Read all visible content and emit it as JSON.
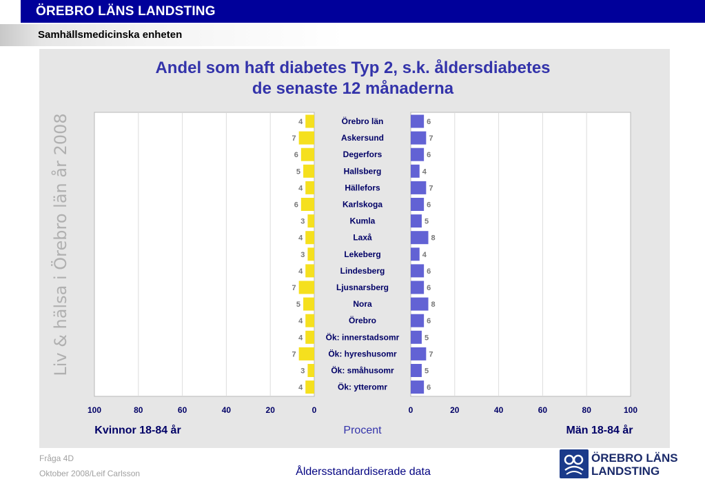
{
  "header": {
    "org_title": "ÖREBRO LÄNS LANDSTING",
    "unit_title": "Samhällsmedicinska enheten"
  },
  "side_label": "Liv & hälsa i Örebro län år 2008",
  "footer": {
    "question": "Fråga 4D",
    "date_author": "Oktober 2008/Leif Carlsson",
    "note": "Åldersstandardiserade data"
  },
  "logo": {
    "line1": "ÖREBRO LÄNS",
    "line2": "LANDSTING"
  },
  "colors": {
    "women": "#f5e01e",
    "men": "#6262d4",
    "title": "#3333aa",
    "header_blue": "#00009a"
  },
  "chart_data": {
    "type": "bar",
    "orientation": "horizontal-butterfly",
    "title_line1": "Andel som haft diabetes Typ 2, s.k. åldersdiabetes",
    "title_line2": "de senaste 12 månaderna",
    "xlabel_left": "Kvinnor 18-84 år",
    "xlabel_center": "Procent",
    "xlabel_right": "Män 18-84 år",
    "xlim": [
      0,
      100
    ],
    "ticks_left": [
      "100",
      "80",
      "60",
      "40",
      "20",
      "0"
    ],
    "ticks_right": [
      "0",
      "20",
      "40",
      "60",
      "80",
      "100"
    ],
    "grid": true,
    "categories": [
      "Örebro län",
      "Askersund",
      "Degerfors",
      "Hallsberg",
      "Hällefors",
      "Karlskoga",
      "Kumla",
      "Laxå",
      "Lekeberg",
      "Lindesberg",
      "Ljusnarsberg",
      "Nora",
      "Örebro",
      "Ök: innerstadsomr",
      "Ök: hyreshusomr",
      "Ök: småhusomr",
      "Ök: ytteromr"
    ],
    "series": [
      {
        "name": "Kvinnor 18-84 år",
        "values": [
          4,
          7,
          6,
          5,
          4,
          6,
          3,
          4,
          3,
          4,
          7,
          5,
          4,
          4,
          7,
          3,
          4
        ]
      },
      {
        "name": "Män 18-84 år",
        "values": [
          6,
          7,
          6,
          4,
          7,
          6,
          5,
          8,
          4,
          6,
          6,
          8,
          6,
          5,
          7,
          5,
          6
        ]
      }
    ]
  }
}
